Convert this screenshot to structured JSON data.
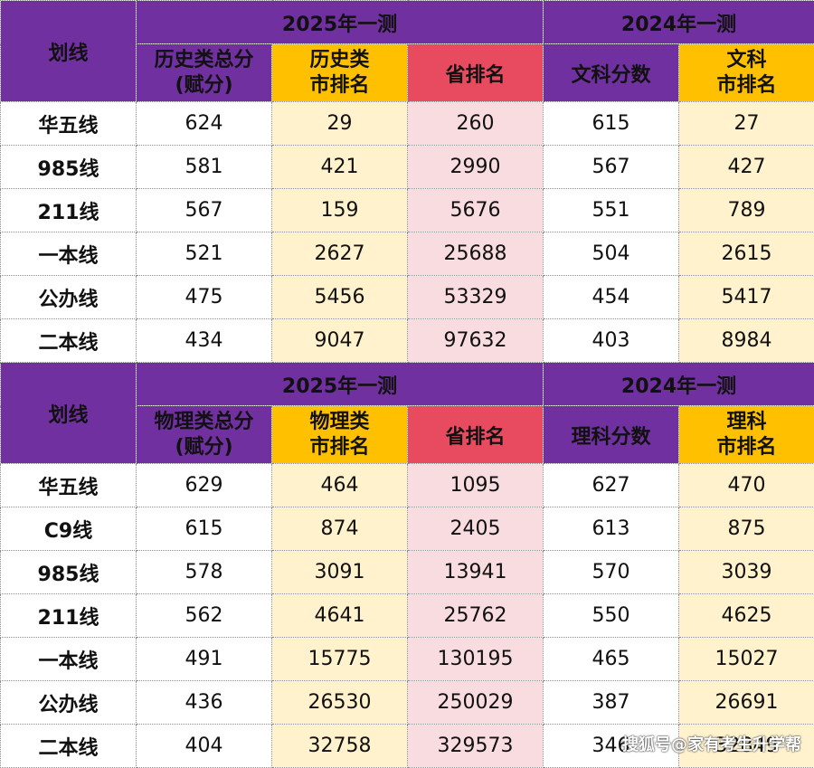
{
  "table1": {
    "corner": "划线",
    "group_2025": "2025年一测",
    "group_2024": "2024年一测",
    "col1": [
      "历史类总分",
      "(赋分)"
    ],
    "col2": [
      "历史类",
      "市排名"
    ],
    "col3": "省排名",
    "col4": "文科分数",
    "col5": [
      "文科",
      "市排名"
    ],
    "rows": [
      {
        "label": "华五线",
        "score2025": "624",
        "city2025": "29",
        "prov2025": "260",
        "score2024": "615",
        "city2024": "27"
      },
      {
        "label": "985线",
        "score2025": "581",
        "city2025": "421",
        "prov2025": "2990",
        "score2024": "567",
        "city2024": "427"
      },
      {
        "label": "211线",
        "score2025": "567",
        "city2025": "159",
        "prov2025": "5676",
        "score2024": "551",
        "city2024": "789"
      },
      {
        "label": "一本线",
        "score2025": "521",
        "city2025": "2627",
        "prov2025": "25688",
        "score2024": "504",
        "city2024": "2615"
      },
      {
        "label": "公办线",
        "score2025": "475",
        "city2025": "5456",
        "prov2025": "53329",
        "score2024": "454",
        "city2024": "5417"
      },
      {
        "label": "二本线",
        "score2025": "434",
        "city2025": "9047",
        "prov2025": "97632",
        "score2024": "403",
        "city2024": "8984"
      }
    ]
  },
  "table2": {
    "corner": "划线",
    "group_2025": "2025年一测",
    "group_2024": "2024年一测",
    "col1": [
      "物理类总分",
      "(赋分)"
    ],
    "col2": [
      "物理类",
      "市排名"
    ],
    "col3": "省排名",
    "col4": "理科分数",
    "col5": [
      "理科",
      "市排名"
    ],
    "rows": [
      {
        "label": "华五线",
        "score2025": "629",
        "city2025": "464",
        "prov2025": "1095",
        "score2024": "627",
        "city2024": "470"
      },
      {
        "label": "C9线",
        "score2025": "615",
        "city2025": "874",
        "prov2025": "2405",
        "score2024": "613",
        "city2024": "875"
      },
      {
        "label": "985线",
        "score2025": "578",
        "city2025": "3091",
        "prov2025": "13941",
        "score2024": "570",
        "city2024": "3039"
      },
      {
        "label": "211线",
        "score2025": "562",
        "city2025": "4641",
        "prov2025": "25762",
        "score2024": "550",
        "city2024": "4625"
      },
      {
        "label": "一本线",
        "score2025": "491",
        "city2025": "15775",
        "prov2025": "130195",
        "score2024": "465",
        "city2024": "15027"
      },
      {
        "label": "公办线",
        "score2025": "436",
        "city2025": "26530",
        "prov2025": "250029",
        "score2024": "387",
        "city2024": "26691"
      },
      {
        "label": "二本线",
        "score2025": "404",
        "city2025": "32758",
        "prov2025": "329573",
        "score2024": "346",
        "city2024": "32849"
      }
    ]
  },
  "watermark": "搜狐号@家有考生升学帮",
  "colors": {
    "purple": "#7030a0",
    "gold": "#ffc000",
    "red": "#e84a5f",
    "cream": "#fff2cc",
    "pink": "#f9dce0"
  }
}
